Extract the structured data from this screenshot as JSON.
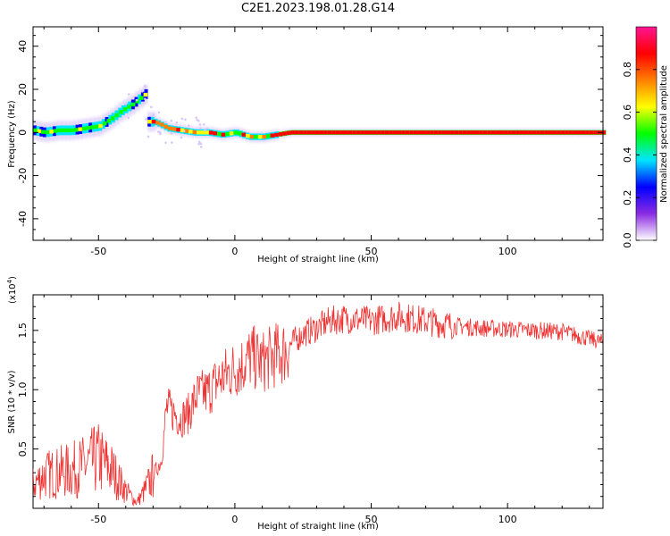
{
  "title": "C2E1.2023.198.01.28.G14",
  "chart_data": [
    {
      "type": "heatmap",
      "xlabel": "Height of straight line (km)",
      "ylabel": "Frequency (Hz)",
      "xlim": [
        -74,
        135
      ],
      "ylim": [
        -50,
        49
      ],
      "xticks": [
        -50,
        0,
        50,
        100
      ],
      "yticks": [
        -40,
        -20,
        0,
        20,
        40
      ],
      "colorbar": {
        "label": "Normalized spectral amplitude",
        "range": [
          0.0,
          1.0
        ],
        "ticks": [
          0.0,
          0.2,
          0.4,
          0.6,
          0.8
        ],
        "tick_labels": [
          "0.0",
          "0.2",
          "0.4",
          "0.6",
          "0.8"
        ],
        "colors": [
          "#ffffff",
          "#8a2be2",
          "#0000ff",
          "#00e5ff",
          "#00ff00",
          "#ffff00",
          "#ff8000",
          "#ff0000",
          "#ff1493"
        ]
      },
      "ridge": {
        "x": [
          -74,
          -70,
          -65,
          -60,
          -55,
          -50,
          -45,
          -42,
          -38,
          -35,
          -33,
          -32,
          -30,
          -28,
          -25,
          -20,
          -15,
          -10,
          -5,
          0,
          5,
          10,
          15,
          20,
          30,
          40,
          60,
          80,
          100,
          120,
          135
        ],
        "y": [
          1,
          0,
          1,
          1,
          2,
          3,
          7,
          10,
          13,
          16,
          18,
          5,
          5,
          4,
          2,
          1,
          0,
          0,
          -1,
          0,
          -2,
          -2,
          -1,
          0,
          0,
          0,
          0,
          0,
          0,
          0,
          0
        ]
      },
      "grid": false
    },
    {
      "type": "line",
      "xlabel": "Height of straight line (km)",
      "ylabel": "SNR (10 * v/v)",
      "multiplier": "(x10",
      "multiplier_exp": "4",
      "multiplier_close": ")",
      "xlim": [
        -74,
        135
      ],
      "ylim": [
        0,
        18000
      ],
      "xticks": [
        -50,
        0,
        50,
        100
      ],
      "yticks": [
        5000,
        10000,
        15000
      ],
      "ytick_labels": [
        "0.5",
        "1.0",
        "1.5"
      ],
      "color": "#ee3333",
      "x": [
        -74,
        -70,
        -65,
        -60,
        -55,
        -50,
        -45,
        -40,
        -36,
        -33,
        -30,
        -27,
        -25,
        -22,
        -20,
        -17,
        -14,
        -10,
        -6,
        -2,
        2,
        6,
        10,
        14,
        18,
        22,
        26,
        30,
        35,
        40,
        50,
        60,
        70,
        80,
        90,
        100,
        110,
        120,
        130,
        135
      ],
      "values": [
        2000,
        2800,
        3000,
        3200,
        3600,
        4200,
        3200,
        1500,
        500,
        1500,
        2800,
        4000,
        8500,
        8000,
        7500,
        8000,
        9500,
        9800,
        10800,
        11500,
        12000,
        12800,
        12300,
        12800,
        13200,
        14200,
        14800,
        15200,
        15800,
        16000,
        15800,
        16200,
        15800,
        15400,
        15200,
        15100,
        15000,
        14900,
        14300,
        14000
      ],
      "grid": false
    }
  ]
}
